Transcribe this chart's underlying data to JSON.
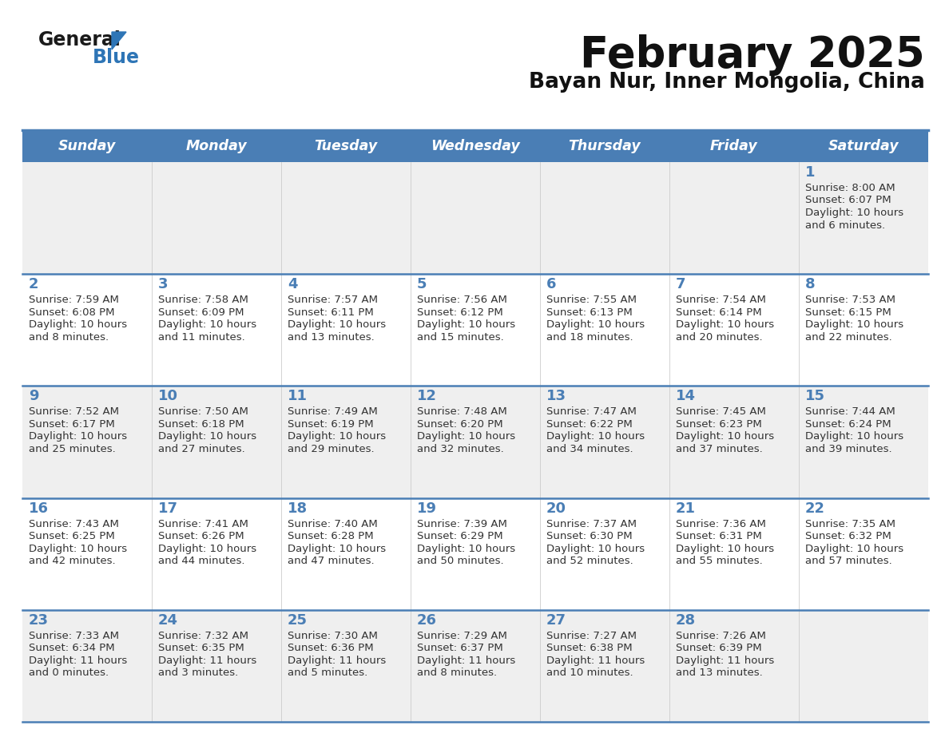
{
  "title": "February 2025",
  "subtitle": "Bayan Nur, Inner Mongolia, China",
  "days_of_week": [
    "Sunday",
    "Monday",
    "Tuesday",
    "Wednesday",
    "Thursday",
    "Friday",
    "Saturday"
  ],
  "header_bg": "#4a7eb5",
  "header_text": "#ffffff",
  "row_bg_gray": "#efefef",
  "row_bg_white": "#ffffff",
  "day_number_color": "#4a7eb5",
  "text_color": "#333333",
  "border_color": "#4a7eb5",
  "logo_text_color": "#1a1a1a",
  "logo_blue_color": "#2e75b6",
  "calendar_data": [
    [
      null,
      null,
      null,
      null,
      null,
      null,
      {
        "day": "1",
        "sunrise": "8:00 AM",
        "sunset": "6:07 PM",
        "daylight_line1": "Daylight: 10 hours",
        "daylight_line2": "and 6 minutes."
      }
    ],
    [
      {
        "day": "2",
        "sunrise": "7:59 AM",
        "sunset": "6:08 PM",
        "daylight_line1": "Daylight: 10 hours",
        "daylight_line2": "and 8 minutes."
      },
      {
        "day": "3",
        "sunrise": "7:58 AM",
        "sunset": "6:09 PM",
        "daylight_line1": "Daylight: 10 hours",
        "daylight_line2": "and 11 minutes."
      },
      {
        "day": "4",
        "sunrise": "7:57 AM",
        "sunset": "6:11 PM",
        "daylight_line1": "Daylight: 10 hours",
        "daylight_line2": "and 13 minutes."
      },
      {
        "day": "5",
        "sunrise": "7:56 AM",
        "sunset": "6:12 PM",
        "daylight_line1": "Daylight: 10 hours",
        "daylight_line2": "and 15 minutes."
      },
      {
        "day": "6",
        "sunrise": "7:55 AM",
        "sunset": "6:13 PM",
        "daylight_line1": "Daylight: 10 hours",
        "daylight_line2": "and 18 minutes."
      },
      {
        "day": "7",
        "sunrise": "7:54 AM",
        "sunset": "6:14 PM",
        "daylight_line1": "Daylight: 10 hours",
        "daylight_line2": "and 20 minutes."
      },
      {
        "day": "8",
        "sunrise": "7:53 AM",
        "sunset": "6:15 PM",
        "daylight_line1": "Daylight: 10 hours",
        "daylight_line2": "and 22 minutes."
      }
    ],
    [
      {
        "day": "9",
        "sunrise": "7:52 AM",
        "sunset": "6:17 PM",
        "daylight_line1": "Daylight: 10 hours",
        "daylight_line2": "and 25 minutes."
      },
      {
        "day": "10",
        "sunrise": "7:50 AM",
        "sunset": "6:18 PM",
        "daylight_line1": "Daylight: 10 hours",
        "daylight_line2": "and 27 minutes."
      },
      {
        "day": "11",
        "sunrise": "7:49 AM",
        "sunset": "6:19 PM",
        "daylight_line1": "Daylight: 10 hours",
        "daylight_line2": "and 29 minutes."
      },
      {
        "day": "12",
        "sunrise": "7:48 AM",
        "sunset": "6:20 PM",
        "daylight_line1": "Daylight: 10 hours",
        "daylight_line2": "and 32 minutes."
      },
      {
        "day": "13",
        "sunrise": "7:47 AM",
        "sunset": "6:22 PM",
        "daylight_line1": "Daylight: 10 hours",
        "daylight_line2": "and 34 minutes."
      },
      {
        "day": "14",
        "sunrise": "7:45 AM",
        "sunset": "6:23 PM",
        "daylight_line1": "Daylight: 10 hours",
        "daylight_line2": "and 37 minutes."
      },
      {
        "day": "15",
        "sunrise": "7:44 AM",
        "sunset": "6:24 PM",
        "daylight_line1": "Daylight: 10 hours",
        "daylight_line2": "and 39 minutes."
      }
    ],
    [
      {
        "day": "16",
        "sunrise": "7:43 AM",
        "sunset": "6:25 PM",
        "daylight_line1": "Daylight: 10 hours",
        "daylight_line2": "and 42 minutes."
      },
      {
        "day": "17",
        "sunrise": "7:41 AM",
        "sunset": "6:26 PM",
        "daylight_line1": "Daylight: 10 hours",
        "daylight_line2": "and 44 minutes."
      },
      {
        "day": "18",
        "sunrise": "7:40 AM",
        "sunset": "6:28 PM",
        "daylight_line1": "Daylight: 10 hours",
        "daylight_line2": "and 47 minutes."
      },
      {
        "day": "19",
        "sunrise": "7:39 AM",
        "sunset": "6:29 PM",
        "daylight_line1": "Daylight: 10 hours",
        "daylight_line2": "and 50 minutes."
      },
      {
        "day": "20",
        "sunrise": "7:37 AM",
        "sunset": "6:30 PM",
        "daylight_line1": "Daylight: 10 hours",
        "daylight_line2": "and 52 minutes."
      },
      {
        "day": "21",
        "sunrise": "7:36 AM",
        "sunset": "6:31 PM",
        "daylight_line1": "Daylight: 10 hours",
        "daylight_line2": "and 55 minutes."
      },
      {
        "day": "22",
        "sunrise": "7:35 AM",
        "sunset": "6:32 PM",
        "daylight_line1": "Daylight: 10 hours",
        "daylight_line2": "and 57 minutes."
      }
    ],
    [
      {
        "day": "23",
        "sunrise": "7:33 AM",
        "sunset": "6:34 PM",
        "daylight_line1": "Daylight: 11 hours",
        "daylight_line2": "and 0 minutes."
      },
      {
        "day": "24",
        "sunrise": "7:32 AM",
        "sunset": "6:35 PM",
        "daylight_line1": "Daylight: 11 hours",
        "daylight_line2": "and 3 minutes."
      },
      {
        "day": "25",
        "sunrise": "7:30 AM",
        "sunset": "6:36 PM",
        "daylight_line1": "Daylight: 11 hours",
        "daylight_line2": "and 5 minutes."
      },
      {
        "day": "26",
        "sunrise": "7:29 AM",
        "sunset": "6:37 PM",
        "daylight_line1": "Daylight: 11 hours",
        "daylight_line2": "and 8 minutes."
      },
      {
        "day": "27",
        "sunrise": "7:27 AM",
        "sunset": "6:38 PM",
        "daylight_line1": "Daylight: 11 hours",
        "daylight_line2": "and 10 minutes."
      },
      {
        "day": "28",
        "sunrise": "7:26 AM",
        "sunset": "6:39 PM",
        "daylight_line1": "Daylight: 11 hours",
        "daylight_line2": "and 13 minutes."
      },
      null
    ]
  ]
}
